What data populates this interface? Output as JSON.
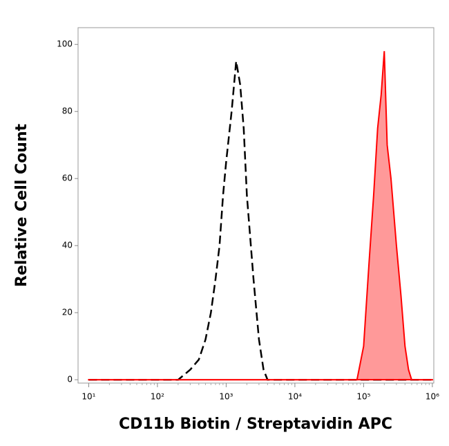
{
  "chart_data": {
    "type": "histogram-log",
    "xlabel": "CD11b Biotin / Streptavidin APC",
    "ylabel": "Relative Cell Count",
    "xscale": "log",
    "xlim": [
      7,
      1050000
    ],
    "ylim": [
      -1,
      105
    ],
    "xticks": [
      {
        "value": 10,
        "label": "10¹"
      },
      {
        "value": 100,
        "label": "10²"
      },
      {
        "value": 1000,
        "label": "10³"
      },
      {
        "value": 10000,
        "label": "10⁴"
      },
      {
        "value": 100000,
        "label": "10⁵"
      },
      {
        "value": 1000000,
        "label": "10⁶"
      }
    ],
    "yticks": [
      0,
      20,
      40,
      60,
      80,
      100
    ],
    "x": [
      10,
      30,
      100,
      200,
      300,
      400,
      500,
      600,
      700,
      800,
      900,
      1000,
      1200,
      1400,
      1600,
      1800,
      2000,
      2500,
      3000,
      3500,
      4000,
      6000,
      10000,
      30000,
      60000,
      80000,
      100000,
      120000,
      140000,
      160000,
      180000,
      200000,
      220000,
      250000,
      300000,
      350000,
      400000,
      450000,
      500000,
      600000,
      1000000
    ],
    "series": [
      {
        "color": "#000000",
        "style": "dashed",
        "fill": false,
        "values": [
          0,
          0,
          0,
          0,
          3,
          6,
          12,
          20,
          30,
          40,
          55,
          65,
          80,
          95,
          88,
          75,
          55,
          30,
          12,
          3,
          0,
          0,
          0,
          0,
          0,
          0,
          0,
          0,
          0,
          0,
          0,
          0,
          0,
          0,
          0,
          0,
          0,
          0,
          0,
          0,
          0
        ]
      },
      {
        "color": "#ff0000",
        "style": "solid",
        "fill": true,
        "values": [
          0,
          0,
          0,
          0,
          0,
          0,
          0,
          0,
          0,
          0,
          0,
          0,
          0,
          0,
          0,
          0,
          0,
          0,
          0,
          0,
          0,
          0,
          0,
          0,
          0,
          0,
          10,
          35,
          55,
          75,
          85,
          98,
          70,
          60,
          40,
          25,
          10,
          3,
          0,
          0,
          0
        ]
      }
    ]
  }
}
